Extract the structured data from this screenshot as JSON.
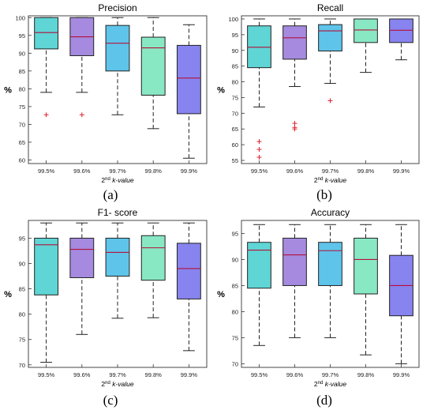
{
  "panel_labels": [
    "(a)",
    "(b)",
    "(c)",
    "(d)"
  ],
  "chart_data": [
    {
      "type": "box",
      "title": "Precision",
      "ylabel": "%",
      "xlabel": "2nd k-value",
      "categories": [
        "99.5%",
        "99.6%",
        "99.7%",
        "99.8%",
        "99.9%"
      ],
      "ylim": [
        59,
        100.5
      ],
      "yticks": [
        60,
        65,
        70,
        75,
        80,
        85,
        90,
        95,
        100
      ],
      "boxes": [
        {
          "color": "#5fd5d5",
          "whisker_low": 79,
          "q1": 91.2,
          "median": 95.8,
          "q3": 100,
          "whisker_high": 100,
          "outliers": [
            72.7
          ]
        },
        {
          "color": "#a58ae0",
          "whisker_low": 79,
          "q1": 89.3,
          "median": 94.6,
          "q3": 100,
          "whisker_high": 100,
          "outliers": [
            72.7
          ]
        },
        {
          "color": "#5ec4ea",
          "whisker_low": 72.7,
          "q1": 85,
          "median": 92.8,
          "q3": 97.8,
          "whisker_high": 100,
          "outliers": []
        },
        {
          "color": "#89e8c4",
          "whisker_low": 68.8,
          "q1": 78.2,
          "median": 91.5,
          "q3": 94.5,
          "whisker_high": 100,
          "outliers": []
        },
        {
          "color": "#8783ef",
          "whisker_low": 60.5,
          "q1": 73,
          "median": 83,
          "q3": 92.2,
          "whisker_high": 98,
          "outliers": []
        }
      ]
    },
    {
      "type": "box",
      "title": "Recall",
      "ylabel": "%",
      "xlabel": "2nd k-value",
      "categories": [
        "99.5%",
        "99.6%",
        "99.7%",
        "99.8%",
        "99.9%"
      ],
      "ylim": [
        54,
        101
      ],
      "yticks": [
        55,
        60,
        65,
        70,
        75,
        80,
        85,
        90,
        95,
        100
      ],
      "boxes": [
        {
          "color": "#5fd5d5",
          "whisker_low": 72,
          "q1": 84.5,
          "median": 91,
          "q3": 97.8,
          "whisker_high": 100,
          "outliers": [
            56,
            58.5,
            61
          ]
        },
        {
          "color": "#a58ae0",
          "whisker_low": 78.5,
          "q1": 87.2,
          "median": 94,
          "q3": 97.8,
          "whisker_high": 100,
          "outliers": [
            65,
            65.5,
            66.8
          ]
        },
        {
          "color": "#5ec4ea",
          "whisker_low": 79.5,
          "q1": 89.8,
          "median": 96.2,
          "q3": 98.2,
          "whisker_high": 100,
          "outliers": [
            74
          ]
        },
        {
          "color": "#89e8c4",
          "whisker_low": 83,
          "q1": 92.5,
          "median": 96.5,
          "q3": 100,
          "whisker_high": 100,
          "outliers": []
        },
        {
          "color": "#8783ef",
          "whisker_low": 87,
          "q1": 92.5,
          "median": 96.4,
          "q3": 100,
          "whisker_high": 100,
          "outliers": []
        }
      ]
    },
    {
      "type": "box",
      "title": "F1- score",
      "ylabel": "%",
      "xlabel": "2nd k-value",
      "categories": [
        "99.5%",
        "99.6%",
        "99.7%",
        "99.8%",
        "99.9%"
      ],
      "ylim": [
        69.5,
        98.5
      ],
      "yticks": [
        70,
        75,
        80,
        85,
        90,
        95
      ],
      "boxes": [
        {
          "color": "#5fd5d5",
          "whisker_low": 70.5,
          "q1": 83.8,
          "median": 93.7,
          "q3": 95,
          "whisker_high": 98,
          "outliers": []
        },
        {
          "color": "#a58ae0",
          "whisker_low": 76,
          "q1": 87.2,
          "median": 92.8,
          "q3": 95,
          "whisker_high": 98,
          "outliers": []
        },
        {
          "color": "#5ec4ea",
          "whisker_low": 79.2,
          "q1": 87.5,
          "median": 92.2,
          "q3": 95,
          "whisker_high": 98,
          "outliers": []
        },
        {
          "color": "#89e8c4",
          "whisker_low": 79.3,
          "q1": 86.7,
          "median": 93.1,
          "q3": 95.5,
          "whisker_high": 98,
          "outliers": []
        },
        {
          "color": "#8783ef",
          "whisker_low": 72.8,
          "q1": 83,
          "median": 89,
          "q3": 94,
          "whisker_high": 98,
          "outliers": []
        }
      ]
    },
    {
      "type": "box",
      "title": "Accuracy",
      "ylabel": "%",
      "xlabel": "2nd k-value",
      "categories": [
        "99.5%",
        "99.6%",
        "99.7%",
        "99.8%",
        "99.9%"
      ],
      "ylim": [
        69.3,
        97.5
      ],
      "yticks": [
        70,
        75,
        80,
        85,
        90,
        95
      ],
      "boxes": [
        {
          "color": "#5fd5d5",
          "whisker_low": 73.5,
          "q1": 84.5,
          "median": 91.8,
          "q3": 93.3,
          "whisker_high": 96.7,
          "outliers": []
        },
        {
          "color": "#a58ae0",
          "whisker_low": 75,
          "q1": 85,
          "median": 90.9,
          "q3": 94.1,
          "whisker_high": 96.7,
          "outliers": []
        },
        {
          "color": "#5ec4ea",
          "whisker_low": 75,
          "q1": 85,
          "median": 91.7,
          "q3": 93.3,
          "whisker_high": 96.7,
          "outliers": []
        },
        {
          "color": "#89e8c4",
          "whisker_low": 71.7,
          "q1": 83.4,
          "median": 90,
          "q3": 94.1,
          "whisker_high": 96.7,
          "outliers": []
        },
        {
          "color": "#8783ef",
          "whisker_low": 70,
          "q1": 79.2,
          "median": 85,
          "q3": 90.8,
          "whisker_high": 96.7,
          "outliers": []
        }
      ]
    }
  ]
}
